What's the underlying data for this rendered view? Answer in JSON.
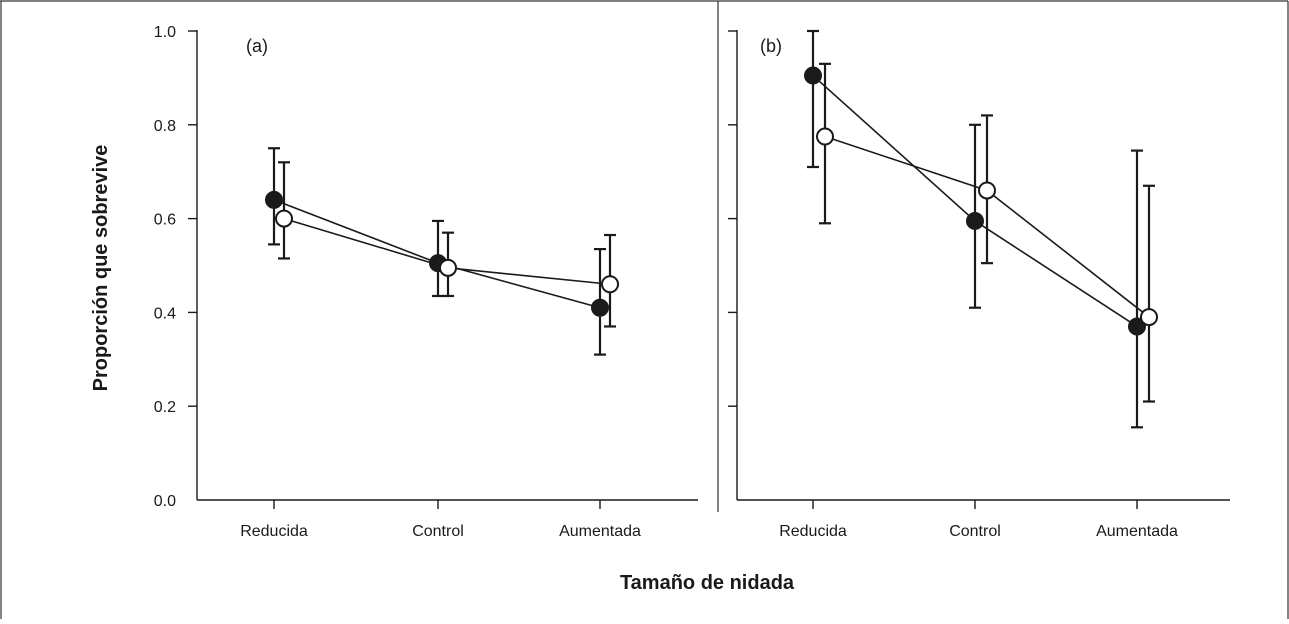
{
  "chart_data": {
    "type": "line",
    "xlabel": "Tamaño de nidada",
    "ylabel": "Proporción que sobrevive",
    "ylim": [
      0,
      1
    ],
    "yticks": [
      "0.0",
      "0.2",
      "0.4",
      "0.6",
      "0.8",
      "1.0"
    ],
    "categories": [
      "Reducida",
      "Control",
      "Aumentada"
    ],
    "marker_styles": [
      "filled-circle",
      "open-circle"
    ],
    "panels": [
      {
        "label": "(a)",
        "series": [
          {
            "marker": "filled",
            "values": [
              0.64,
              0.505,
              0.41
            ],
            "err_low": [
              0.545,
              0.435,
              0.31
            ],
            "err_high": [
              0.75,
              0.595,
              0.535
            ]
          },
          {
            "marker": "open",
            "values": [
              0.6,
              0.495,
              0.46
            ],
            "err_low": [
              0.515,
              0.435,
              0.37
            ],
            "err_high": [
              0.72,
              0.57,
              0.565
            ]
          }
        ]
      },
      {
        "label": "(b)",
        "series": [
          {
            "marker": "filled",
            "values": [
              0.905,
              0.595,
              0.37
            ],
            "err_low": [
              0.71,
              0.41,
              0.155
            ],
            "err_high": [
              1.0,
              0.8,
              0.745
            ]
          },
          {
            "marker": "open",
            "values": [
              0.775,
              0.66,
              0.39
            ],
            "err_low": [
              0.59,
              0.505,
              0.21
            ],
            "err_high": [
              0.93,
              0.82,
              0.67
            ]
          }
        ]
      }
    ]
  }
}
